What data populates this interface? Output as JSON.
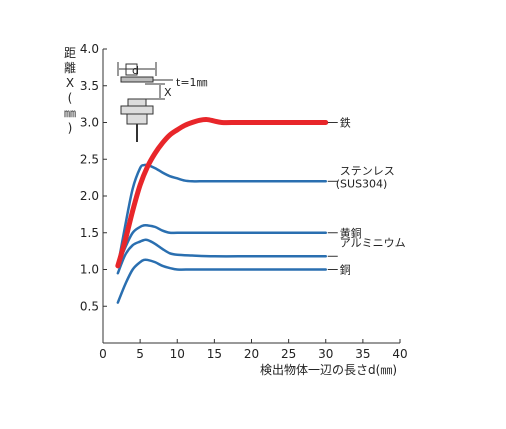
{
  "chart_data": {
    "type": "line",
    "xlabel": "検出物体一辺の長さd(㎜)",
    "ylabel": "距離X(㎜)",
    "xlim": [
      0,
      40
    ],
    "ylim": [
      0,
      4.0
    ],
    "xticks": [
      "0",
      "5",
      "10",
      "15",
      "20",
      "25",
      "30",
      "35",
      "40"
    ],
    "yticks": [
      "0.5",
      "1.0",
      "1.5",
      "2.0",
      "2.5",
      "3.0",
      "3.5",
      "4.0"
    ],
    "grid": false,
    "inset": {
      "d_label": "□d",
      "x_label": "X",
      "t_label": "t=1㎜"
    },
    "series": [
      {
        "name": "鉄",
        "color": "#e8262a",
        "x": [
          2,
          3,
          4,
          5,
          6,
          7,
          8,
          9,
          10,
          11,
          12,
          13,
          14,
          15,
          16,
          18,
          20,
          25,
          30
        ],
        "y": [
          1.05,
          1.4,
          1.8,
          2.15,
          2.4,
          2.58,
          2.72,
          2.83,
          2.9,
          2.96,
          3.0,
          3.03,
          3.04,
          3.02,
          3.0,
          3.0,
          3.0,
          3.0,
          3.0
        ]
      },
      {
        "name_line1": "ステンレス",
        "name_line2": "(SUS304)",
        "color": "#2a6fb0",
        "x": [
          2,
          3,
          4,
          5,
          5.5,
          6,
          7,
          8,
          9,
          10,
          11,
          12,
          13,
          15,
          20,
          25,
          30
        ],
        "y": [
          1.05,
          1.6,
          2.1,
          2.38,
          2.42,
          2.42,
          2.38,
          2.32,
          2.27,
          2.24,
          2.21,
          2.2,
          2.2,
          2.2,
          2.2,
          2.2,
          2.2
        ]
      },
      {
        "name": "黄銅",
        "color": "#2a6fb0",
        "x": [
          2,
          3,
          4,
          5,
          5.5,
          6,
          7,
          8,
          9,
          10,
          12,
          15,
          20,
          25,
          30
        ],
        "y": [
          1.05,
          1.3,
          1.5,
          1.58,
          1.6,
          1.6,
          1.58,
          1.53,
          1.5,
          1.5,
          1.5,
          1.5,
          1.5,
          1.5,
          1.5
        ]
      },
      {
        "name": "アルミニウム",
        "color": "#2a6fb0",
        "x": [
          2,
          3,
          4,
          5,
          5.5,
          6,
          7,
          8,
          9,
          10,
          12,
          15,
          20,
          25,
          30
        ],
        "y": [
          0.95,
          1.2,
          1.33,
          1.38,
          1.4,
          1.4,
          1.35,
          1.28,
          1.22,
          1.2,
          1.19,
          1.18,
          1.18,
          1.18,
          1.18
        ]
      },
      {
        "name": "銅",
        "color": "#2a6fb0",
        "x": [
          2,
          3,
          4,
          5,
          5.5,
          6,
          7,
          8,
          9,
          10,
          12,
          15,
          20,
          25,
          30
        ],
        "y": [
          0.55,
          0.8,
          1.0,
          1.1,
          1.13,
          1.13,
          1.1,
          1.05,
          1.02,
          1.0,
          1.0,
          1.0,
          1.0,
          1.0,
          1.0
        ]
      }
    ]
  }
}
